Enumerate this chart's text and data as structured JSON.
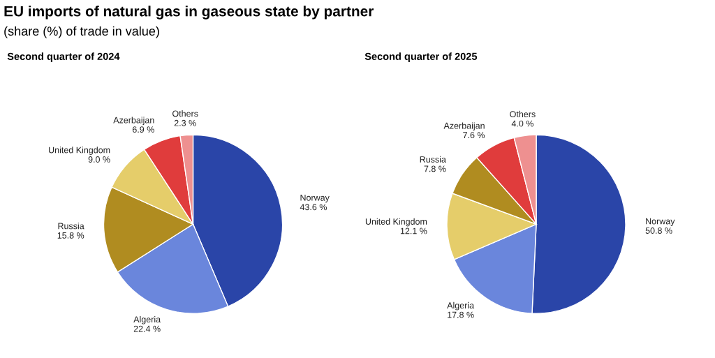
{
  "chart_data": [
    {
      "type": "pie",
      "title": "Second quarter of 2024",
      "annotations": [
        "EU imports of natural gas in gaseous state by partner",
        "(share (%) of trade in value)"
      ],
      "categories": [
        "Norway",
        "Algeria",
        "Russia",
        "United Kingdom",
        "Azerbaijan",
        "Others"
      ],
      "values": [
        43.6,
        22.4,
        15.8,
        9.0,
        6.9,
        2.3
      ],
      "value_labels": [
        "43.6 %",
        "22.4 %",
        "15.8 %",
        "9.0 %",
        "6.9 %",
        "2.3 %"
      ],
      "colors": [
        "#2a45a8",
        "#6a86dc",
        "#b08c20",
        "#e5cd6a",
        "#e03c3c",
        "#ee9090"
      ]
    },
    {
      "type": "pie",
      "title": "Second quarter of 2025",
      "categories": [
        "Norway",
        "Algeria",
        "United Kingdom",
        "Russia",
        "Azerbaijan",
        "Others"
      ],
      "values": [
        50.8,
        17.8,
        12.1,
        7.8,
        7.6,
        4.0
      ],
      "value_labels": [
        "50.8 %",
        "17.8 %",
        "12.1 %",
        "7.8 %",
        "7.6 %",
        "4.0 %"
      ],
      "colors": [
        "#2a45a8",
        "#6a86dc",
        "#e5cd6a",
        "#b08c20",
        "#e03c3c",
        "#ee9090"
      ]
    }
  ]
}
